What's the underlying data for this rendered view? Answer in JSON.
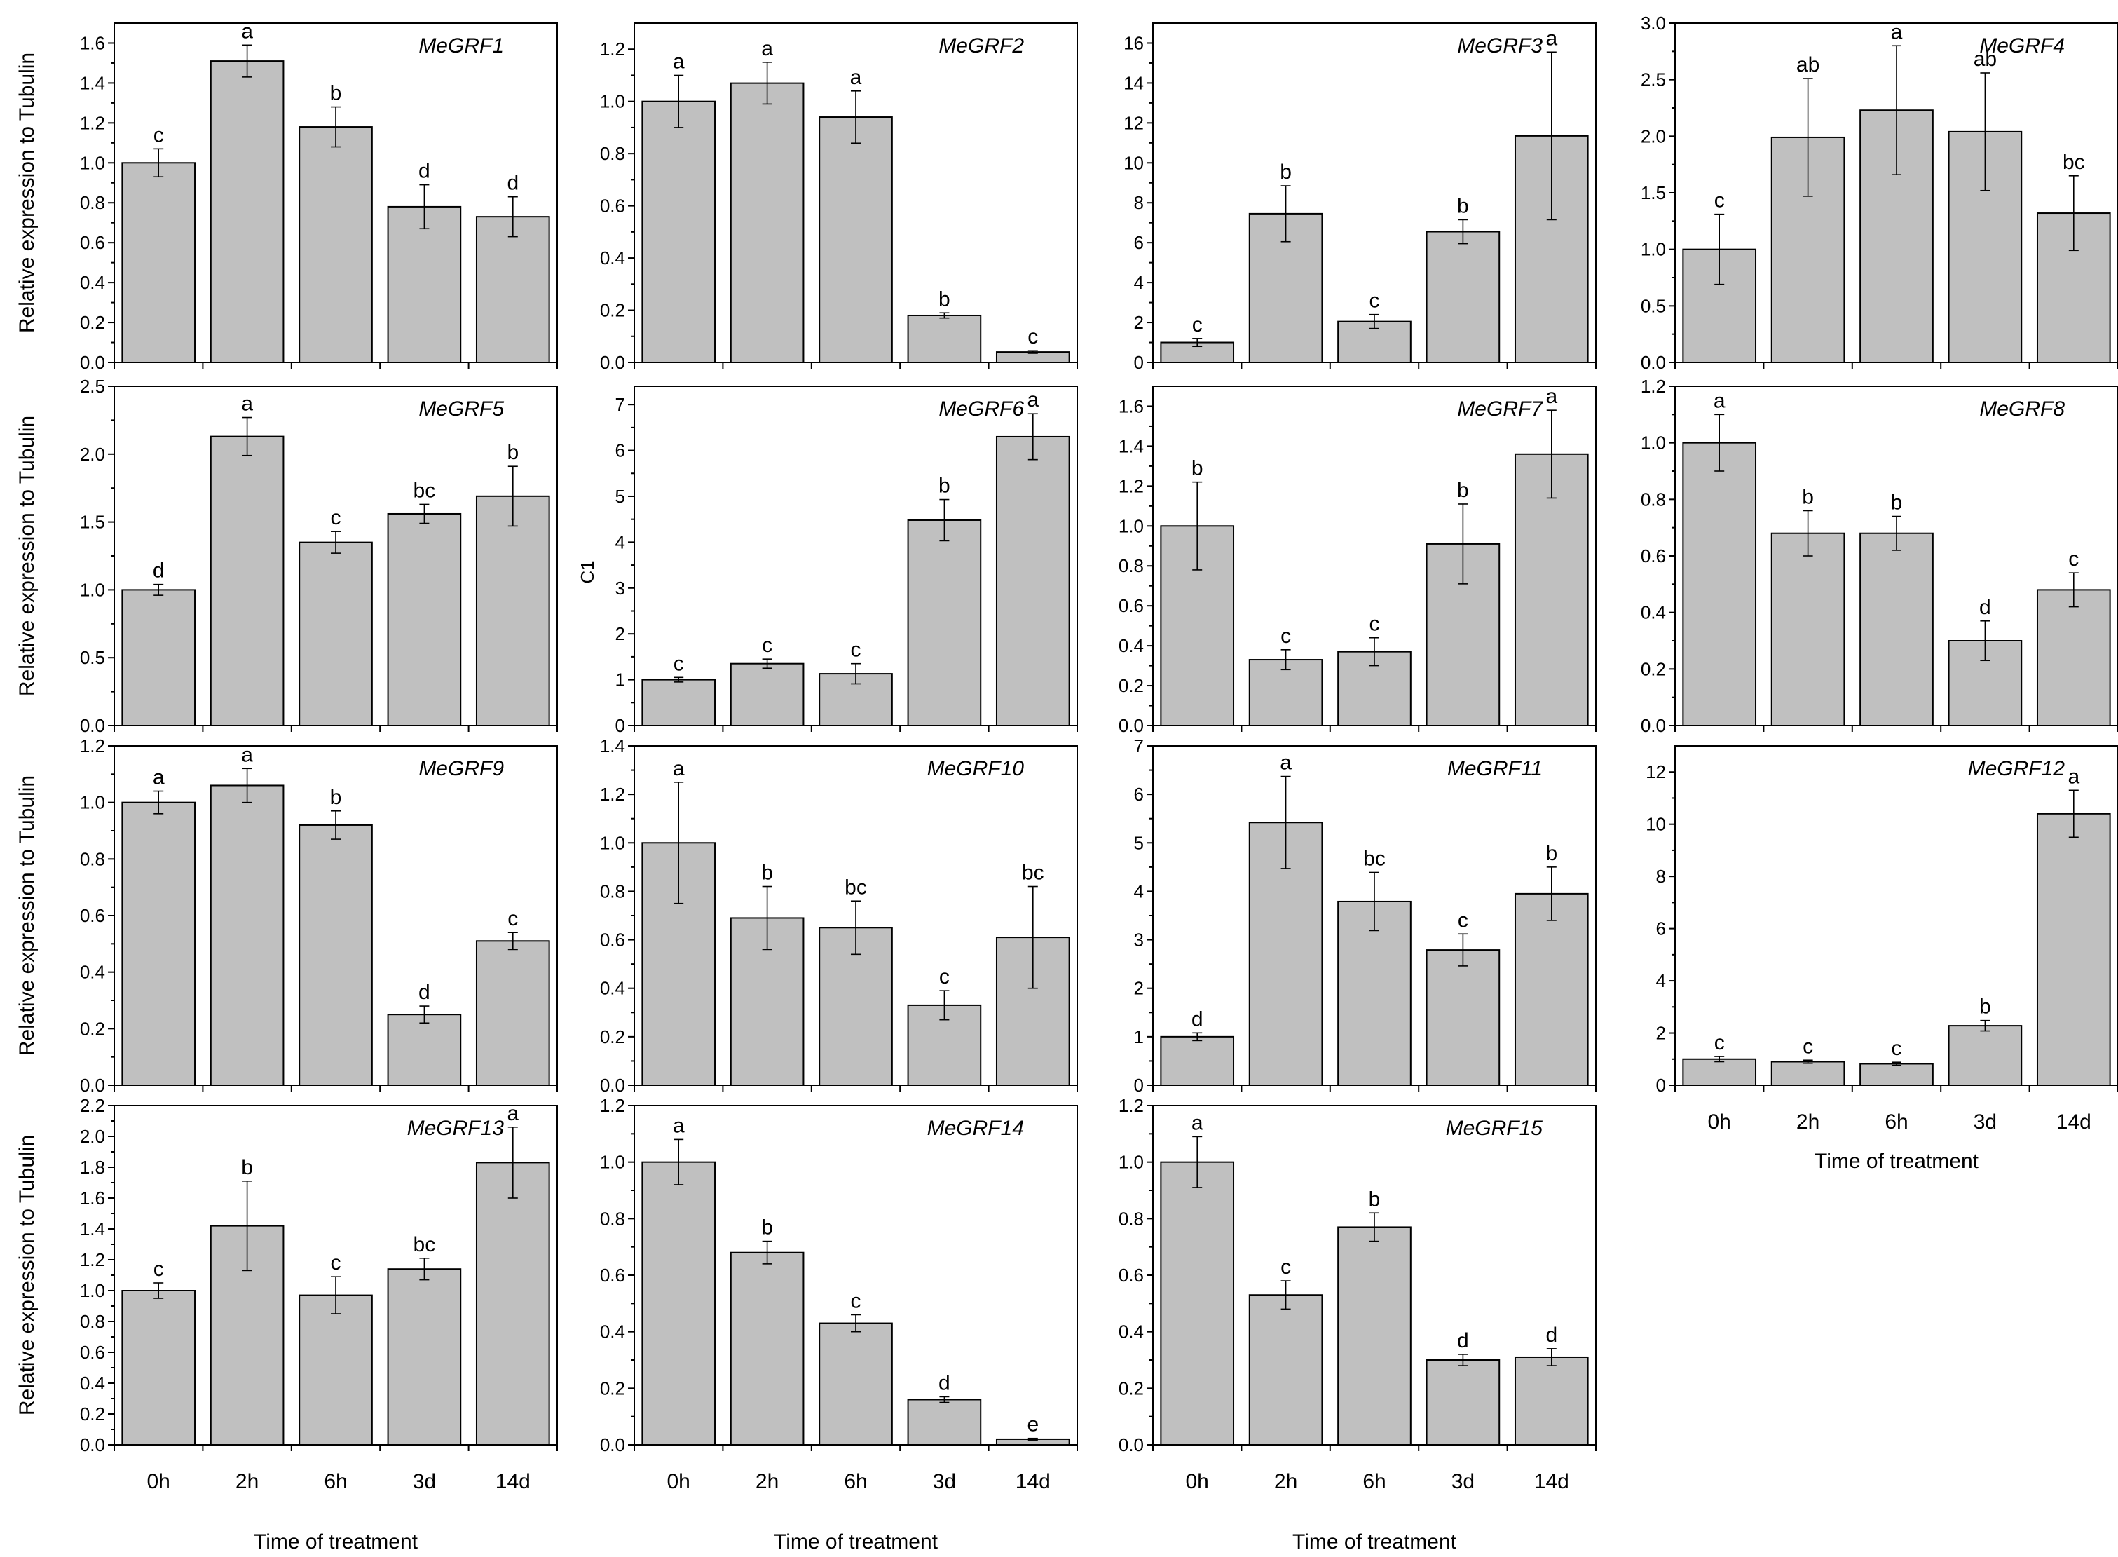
{
  "figure": {
    "x_axis_label": "Time of treatment",
    "y_axis_label": "Relative expression to Tubulin",
    "panel6_ylabel": "C1",
    "bar_color": "#c0c0c0"
  },
  "chart_data": [
    {
      "type": "bar",
      "title": "MeGRF1",
      "categories": [
        "0h",
        "2h",
        "6h",
        "3d",
        "14d"
      ],
      "values": [
        1.0,
        1.51,
        1.18,
        0.78,
        0.73
      ],
      "errors": [
        0.07,
        0.08,
        0.1,
        0.11,
        0.1
      ],
      "letters": [
        "c",
        "a",
        "b",
        "d",
        "d"
      ],
      "ylim": [
        0,
        1.7
      ],
      "yticks": [
        "0.0",
        "0.2",
        "0.4",
        "0.6",
        "0.8",
        "1.0",
        "1.2",
        "1.4",
        "1.6"
      ],
      "ylabel": "Relative expression to Tubulin",
      "xlabel": ""
    },
    {
      "type": "bar",
      "title": "MeGRF2",
      "categories": [
        "0h",
        "2h",
        "6h",
        "3d",
        "14d"
      ],
      "values": [
        1.0,
        1.07,
        0.94,
        0.18,
        0.04
      ],
      "errors": [
        0.1,
        0.08,
        0.1,
        0.01,
        0.005
      ],
      "letters": [
        "a",
        "a",
        "a",
        "b",
        "c"
      ],
      "ylim": [
        0,
        1.3
      ],
      "yticks": [
        "0.0",
        "0.2",
        "0.4",
        "0.6",
        "0.8",
        "1.0",
        "1.2"
      ],
      "ylabel": "",
      "xlabel": ""
    },
    {
      "type": "bar",
      "title": "MeGRF3",
      "categories": [
        "0h",
        "2h",
        "6h",
        "3d",
        "14d"
      ],
      "values": [
        1.0,
        7.45,
        2.05,
        6.55,
        11.35
      ],
      "errors": [
        0.2,
        1.4,
        0.35,
        0.6,
        4.2
      ],
      "letters": [
        "c",
        "b",
        "c",
        "b",
        "a"
      ],
      "ylim": [
        0,
        17
      ],
      "yticks": [
        "0",
        "2",
        "4",
        "6",
        "8",
        "10",
        "12",
        "14",
        "16"
      ],
      "ylabel": "",
      "xlabel": ""
    },
    {
      "type": "bar",
      "title": "MeGRF4",
      "categories": [
        "0h",
        "2h",
        "6h",
        "3d",
        "14d"
      ],
      "values": [
        1.0,
        1.99,
        2.23,
        2.04,
        1.32
      ],
      "errors": [
        0.31,
        0.52,
        0.57,
        0.52,
        0.33
      ],
      "letters": [
        "c",
        "ab",
        "a",
        "ab",
        "bc"
      ],
      "ylim": [
        0,
        3.0
      ],
      "yticks": [
        "0.0",
        "0.5",
        "1.0",
        "1.5",
        "2.0",
        "2.5",
        "3.0"
      ],
      "ylabel": "",
      "xlabel": ""
    },
    {
      "type": "bar",
      "title": "MeGRF5",
      "categories": [
        "0h",
        "2h",
        "6h",
        "3d",
        "14d"
      ],
      "values": [
        1.0,
        2.13,
        1.35,
        1.56,
        1.69
      ],
      "errors": [
        0.04,
        0.14,
        0.08,
        0.07,
        0.22
      ],
      "letters": [
        "d",
        "a",
        "c",
        "bc",
        "b"
      ],
      "ylim": [
        0,
        2.5
      ],
      "yticks": [
        "0.0",
        "0.5",
        "1.0",
        "1.5",
        "2.0",
        "2.5"
      ],
      "ylabel": "Relative expression to Tubulin",
      "xlabel": ""
    },
    {
      "type": "bar",
      "title": "MeGRF6",
      "categories": [
        "0h",
        "2h",
        "6h",
        "3d",
        "14d"
      ],
      "values": [
        1.0,
        1.35,
        1.13,
        4.48,
        6.3
      ],
      "errors": [
        0.05,
        0.1,
        0.22,
        0.45,
        0.5
      ],
      "letters": [
        "c",
        "c",
        "c",
        "b",
        "a"
      ],
      "ylim": [
        0,
        7.4
      ],
      "yticks": [
        "0",
        "1",
        "2",
        "3",
        "4",
        "5",
        "6",
        "7"
      ],
      "ylabel": "C1",
      "xlabel": ""
    },
    {
      "type": "bar",
      "title": "MeGRF7",
      "categories": [
        "0h",
        "2h",
        "6h",
        "3d",
        "14d"
      ],
      "values": [
        1.0,
        0.33,
        0.37,
        0.91,
        1.36
      ],
      "errors": [
        0.22,
        0.05,
        0.07,
        0.2,
        0.22
      ],
      "letters": [
        "b",
        "c",
        "c",
        "b",
        "a"
      ],
      "ylim": [
        0,
        1.7
      ],
      "yticks": [
        "0.0",
        "0.2",
        "0.4",
        "0.6",
        "0.8",
        "1.0",
        "1.2",
        "1.4",
        "1.6"
      ],
      "ylabel": "",
      "xlabel": ""
    },
    {
      "type": "bar",
      "title": "MeGRF8",
      "categories": [
        "0h",
        "2h",
        "6h",
        "3d",
        "14d"
      ],
      "values": [
        1.0,
        0.68,
        0.68,
        0.3,
        0.48
      ],
      "errors": [
        0.1,
        0.08,
        0.06,
        0.07,
        0.06
      ],
      "letters": [
        "a",
        "b",
        "b",
        "d",
        "c"
      ],
      "ylim": [
        0,
        1.2
      ],
      "yticks": [
        "0.0",
        "0.2",
        "0.4",
        "0.6",
        "0.8",
        "1.0",
        "1.2"
      ],
      "ylabel": "",
      "xlabel": ""
    },
    {
      "type": "bar",
      "title": "MeGRF9",
      "categories": [
        "0h",
        "2h",
        "6h",
        "3d",
        "14d"
      ],
      "values": [
        1.0,
        1.06,
        0.92,
        0.25,
        0.51
      ],
      "errors": [
        0.04,
        0.06,
        0.05,
        0.03,
        0.03
      ],
      "letters": [
        "a",
        "a",
        "b",
        "d",
        "c"
      ],
      "ylim": [
        0,
        1.2
      ],
      "yticks": [
        "0.0",
        "0.2",
        "0.4",
        "0.6",
        "0.8",
        "1.0",
        "1.2"
      ],
      "ylabel": "Relative expression to Tubulin",
      "xlabel": ""
    },
    {
      "type": "bar",
      "title": "MeGRF10",
      "categories": [
        "0h",
        "2h",
        "6h",
        "3d",
        "14d"
      ],
      "values": [
        1.0,
        0.69,
        0.65,
        0.33,
        0.61
      ],
      "errors": [
        0.25,
        0.13,
        0.11,
        0.06,
        0.21
      ],
      "letters": [
        "a",
        "b",
        "bc",
        "c",
        "bc"
      ],
      "ylim": [
        0,
        1.4
      ],
      "yticks": [
        "0.0",
        "0.2",
        "0.4",
        "0.6",
        "0.8",
        "1.0",
        "1.2",
        "1.4"
      ],
      "ylabel": "",
      "xlabel": ""
    },
    {
      "type": "bar",
      "title": "MeGRF11",
      "categories": [
        "0h",
        "2h",
        "6h",
        "3d",
        "14d"
      ],
      "values": [
        1.0,
        5.42,
        3.79,
        2.79,
        3.95
      ],
      "errors": [
        0.08,
        0.95,
        0.6,
        0.33,
        0.55
      ],
      "letters": [
        "d",
        "a",
        "bc",
        "c",
        "b"
      ],
      "ylim": [
        0,
        7
      ],
      "yticks": [
        "0",
        "1",
        "2",
        "3",
        "4",
        "5",
        "6",
        "7"
      ],
      "ylabel": "",
      "xlabel": ""
    },
    {
      "type": "bar",
      "title": "MeGRF12",
      "categories": [
        "0h",
        "2h",
        "6h",
        "3d",
        "14d"
      ],
      "values": [
        1.0,
        0.9,
        0.82,
        2.28,
        10.4
      ],
      "errors": [
        0.1,
        0.06,
        0.06,
        0.2,
        0.9
      ],
      "letters": [
        "c",
        "c",
        "c",
        "b",
        "a"
      ],
      "ylim": [
        0,
        13
      ],
      "yticks": [
        "0",
        "2",
        "4",
        "6",
        "8",
        "10",
        "12"
      ],
      "ylabel": "",
      "xlabel": "Time of treatment"
    },
    {
      "type": "bar",
      "title": "MeGRF13",
      "categories": [
        "0h",
        "2h",
        "6h",
        "3d",
        "14d"
      ],
      "values": [
        1.0,
        1.42,
        0.97,
        1.14,
        1.83
      ],
      "errors": [
        0.05,
        0.29,
        0.12,
        0.07,
        0.23
      ],
      "letters": [
        "c",
        "b",
        "c",
        "bc",
        "a"
      ],
      "ylim": [
        0,
        2.2
      ],
      "yticks": [
        "0.0",
        "0.2",
        "0.4",
        "0.6",
        "0.8",
        "1.0",
        "1.2",
        "1.4",
        "1.6",
        "1.8",
        "2.0",
        "2.2"
      ],
      "ylabel": "Relative expression to Tubulin",
      "xlabel": "Time of treatment"
    },
    {
      "type": "bar",
      "title": "MeGRF14",
      "categories": [
        "0h",
        "2h",
        "6h",
        "3d",
        "14d"
      ],
      "values": [
        1.0,
        0.68,
        0.43,
        0.16,
        0.02
      ],
      "errors": [
        0.08,
        0.04,
        0.03,
        0.01,
        0.003
      ],
      "letters": [
        "a",
        "b",
        "c",
        "d",
        "e"
      ],
      "ylim": [
        0,
        1.2
      ],
      "yticks": [
        "0.0",
        "0.2",
        "0.4",
        "0.6",
        "0.8",
        "1.0",
        "1.2"
      ],
      "ylabel": "",
      "xlabel": "Time of treatment"
    },
    {
      "type": "bar",
      "title": "MeGRF15",
      "categories": [
        "0h",
        "2h",
        "6h",
        "3d",
        "14d"
      ],
      "values": [
        1.0,
        0.53,
        0.77,
        0.3,
        0.31
      ],
      "errors": [
        0.09,
        0.05,
        0.05,
        0.02,
        0.03
      ],
      "letters": [
        "a",
        "c",
        "b",
        "d",
        "d"
      ],
      "ylim": [
        0,
        1.2
      ],
      "yticks": [
        "0.0",
        "0.2",
        "0.4",
        "0.6",
        "0.8",
        "1.0",
        "1.2"
      ],
      "ylabel": "",
      "xlabel": "Time of treatment"
    }
  ]
}
